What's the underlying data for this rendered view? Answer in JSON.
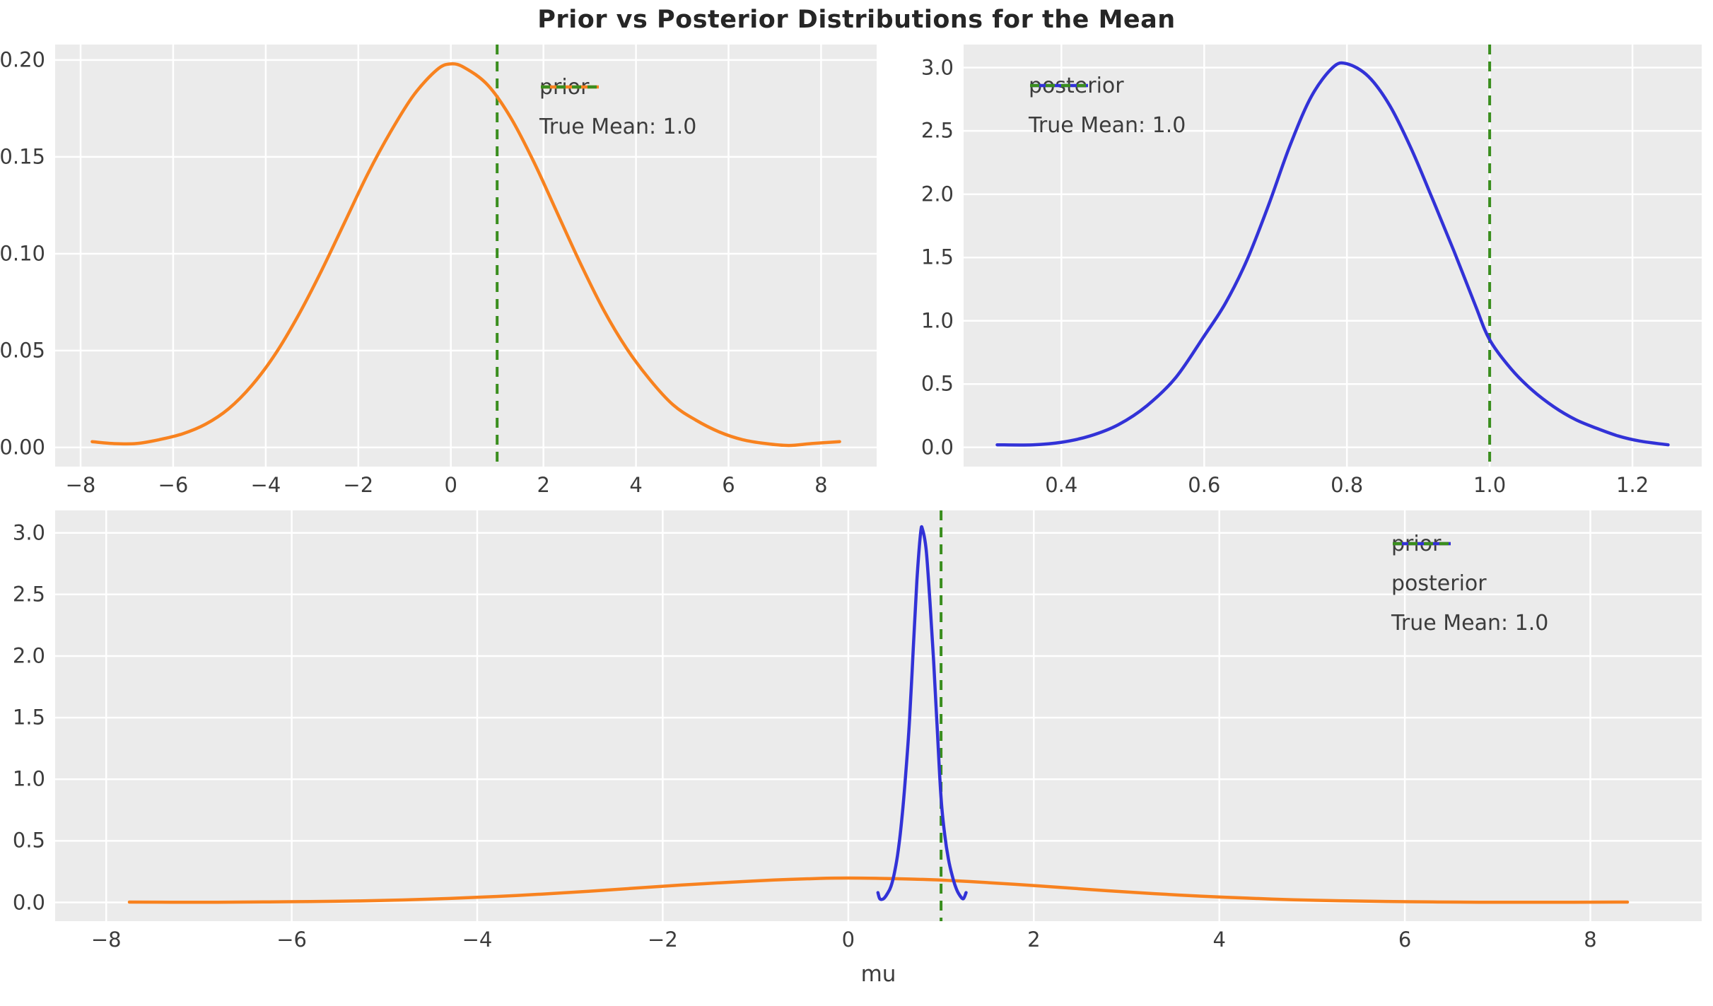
{
  "figure": {
    "title": "Prior vs Posterior Distributions for the Mean",
    "background": "#ffffff",
    "panel_background": "#ebebeb",
    "grid_color": "#ffffff",
    "tick_color": "#3c3c3c",
    "title_color": "#262626"
  },
  "colors": {
    "prior": "#f8821f",
    "posterior": "#3232d7",
    "true_mean": "#3a8e1e"
  },
  "chart_data": [
    {
      "id": "prior-subplot",
      "type": "line",
      "position": "top-left",
      "xlabel": "",
      "ylabel": "",
      "xlim": [
        -8.55,
        9.2
      ],
      "ylim": [
        -0.0099,
        0.208
      ],
      "grid": true,
      "legend_position": "upper right",
      "xticks": {
        "values": [
          -8,
          -6,
          -4,
          -2,
          0,
          2,
          4,
          6,
          8
        ],
        "labels": [
          "−8",
          "−6",
          "−4",
          "−2",
          "0",
          "2",
          "4",
          "6",
          "8"
        ]
      },
      "yticks": {
        "values": [
          0,
          0.05,
          0.1,
          0.15,
          0.2
        ],
        "labels": [
          "0.00",
          "0.05",
          "0.10",
          "0.15",
          "0.20"
        ]
      },
      "series": [
        {
          "name": "prior",
          "color_key": "prior",
          "dash": "solid",
          "points": [
            [
              -7.75,
              0.003
            ],
            [
              -7.3,
              0.002
            ],
            [
              -6.8,
              0.002
            ],
            [
              -6.3,
              0.004
            ],
            [
              -5.8,
              0.007
            ],
            [
              -5.3,
              0.012
            ],
            [
              -4.8,
              0.02
            ],
            [
              -4.3,
              0.032
            ],
            [
              -3.8,
              0.048
            ],
            [
              -3.3,
              0.068
            ],
            [
              -2.8,
              0.091
            ],
            [
              -2.3,
              0.116
            ],
            [
              -1.8,
              0.141
            ],
            [
              -1.3,
              0.163
            ],
            [
              -0.8,
              0.182
            ],
            [
              -0.3,
              0.195
            ],
            [
              0.0,
              0.198
            ],
            [
              0.3,
              0.196
            ],
            [
              0.8,
              0.187
            ],
            [
              1.3,
              0.17
            ],
            [
              1.8,
              0.147
            ],
            [
              2.3,
              0.121
            ],
            [
              2.8,
              0.095
            ],
            [
              3.3,
              0.071
            ],
            [
              3.8,
              0.051
            ],
            [
              4.3,
              0.035
            ],
            [
              4.8,
              0.022
            ],
            [
              5.3,
              0.014
            ],
            [
              5.8,
              0.008
            ],
            [
              6.3,
              0.004
            ],
            [
              6.8,
              0.002
            ],
            [
              7.3,
              0.001
            ],
            [
              7.8,
              0.002
            ],
            [
              8.4,
              0.003
            ]
          ]
        }
      ],
      "vline": {
        "x": 1.0,
        "label": "True Mean: 1.0",
        "color_key": "true_mean",
        "dash": "dashed"
      },
      "legend": [
        {
          "label": "prior",
          "color_key": "prior",
          "dash": "solid"
        },
        {
          "label": "True Mean: 1.0",
          "color_key": "true_mean",
          "dash": "dashed"
        }
      ]
    },
    {
      "id": "posterior-subplot",
      "type": "line",
      "position": "top-right",
      "xlabel": "",
      "ylabel": "",
      "xlim": [
        0.263,
        1.297
      ],
      "ylim": [
        -0.152,
        3.182
      ],
      "grid": true,
      "legend_position": "upper left",
      "xticks": {
        "values": [
          0.4,
          0.6,
          0.8,
          1.0,
          1.2
        ],
        "labels": [
          "0.4",
          "0.6",
          "0.8",
          "1.0",
          "1.2"
        ]
      },
      "yticks": {
        "values": [
          0,
          0.5,
          1.0,
          1.5,
          2.0,
          2.5,
          3.0
        ],
        "labels": [
          "0.0",
          "0.5",
          "1.0",
          "1.5",
          "2.0",
          "2.5",
          "3.0"
        ]
      },
      "series": [
        {
          "name": "posterior",
          "color_key": "posterior",
          "dash": "solid",
          "points": [
            [
              0.31,
              0.02
            ],
            [
              0.36,
              0.02
            ],
            [
              0.4,
              0.04
            ],
            [
              0.44,
              0.09
            ],
            [
              0.48,
              0.18
            ],
            [
              0.52,
              0.33
            ],
            [
              0.56,
              0.55
            ],
            [
              0.6,
              0.88
            ],
            [
              0.63,
              1.14
            ],
            [
              0.66,
              1.48
            ],
            [
              0.69,
              1.91
            ],
            [
              0.72,
              2.38
            ],
            [
              0.75,
              2.77
            ],
            [
              0.78,
              3.0
            ],
            [
              0.8,
              3.03
            ],
            [
              0.83,
              2.93
            ],
            [
              0.86,
              2.7
            ],
            [
              0.89,
              2.36
            ],
            [
              0.92,
              1.96
            ],
            [
              0.95,
              1.55
            ],
            [
              0.98,
              1.12
            ],
            [
              1.0,
              0.85
            ],
            [
              1.03,
              0.62
            ],
            [
              1.06,
              0.45
            ],
            [
              1.09,
              0.32
            ],
            [
              1.12,
              0.22
            ],
            [
              1.15,
              0.15
            ],
            [
              1.18,
              0.09
            ],
            [
              1.21,
              0.05
            ],
            [
              1.25,
              0.02
            ]
          ]
        }
      ],
      "vline": {
        "x": 1.0,
        "label": "True Mean: 1.0",
        "color_key": "true_mean",
        "dash": "dashed"
      },
      "legend": [
        {
          "label": "posterior",
          "color_key": "posterior",
          "dash": "solid"
        },
        {
          "label": "True Mean: 1.0",
          "color_key": "true_mean",
          "dash": "dashed"
        }
      ]
    },
    {
      "id": "combined-subplot",
      "type": "line",
      "position": "bottom",
      "xlabel": "mu",
      "ylabel": "",
      "xlim": [
        -8.55,
        9.2
      ],
      "ylim": [
        -0.152,
        3.182
      ],
      "grid": true,
      "legend_position": "upper right",
      "xticks": {
        "values": [
          -8,
          -6,
          -4,
          -2,
          0,
          2,
          4,
          6,
          8
        ],
        "labels": [
          "−8",
          "−6",
          "−4",
          "−2",
          "0",
          "2",
          "4",
          "6",
          "8"
        ]
      },
      "yticks": {
        "values": [
          0,
          0.5,
          1.0,
          1.5,
          2.0,
          2.5,
          3.0
        ],
        "labels": [
          "0.0",
          "0.5",
          "1.0",
          "1.5",
          "2.0",
          "2.5",
          "3.0"
        ]
      },
      "series": [
        {
          "name": "prior",
          "color_key": "prior",
          "dash": "solid",
          "points": [
            [
              -7.75,
              0.003
            ],
            [
              -7.3,
              0.002
            ],
            [
              -6.8,
              0.002
            ],
            [
              -6.3,
              0.004
            ],
            [
              -5.8,
              0.007
            ],
            [
              -5.3,
              0.012
            ],
            [
              -4.8,
              0.02
            ],
            [
              -4.3,
              0.032
            ],
            [
              -3.8,
              0.048
            ],
            [
              -3.3,
              0.068
            ],
            [
              -2.8,
              0.091
            ],
            [
              -2.3,
              0.116
            ],
            [
              -1.8,
              0.141
            ],
            [
              -1.3,
              0.163
            ],
            [
              -0.8,
              0.182
            ],
            [
              -0.3,
              0.195
            ],
            [
              0.0,
              0.198
            ],
            [
              0.3,
              0.196
            ],
            [
              0.8,
              0.187
            ],
            [
              1.3,
              0.17
            ],
            [
              1.8,
              0.147
            ],
            [
              2.3,
              0.121
            ],
            [
              2.8,
              0.095
            ],
            [
              3.3,
              0.071
            ],
            [
              3.8,
              0.051
            ],
            [
              4.3,
              0.035
            ],
            [
              4.8,
              0.022
            ],
            [
              5.3,
              0.014
            ],
            [
              5.8,
              0.008
            ],
            [
              6.3,
              0.004
            ],
            [
              6.8,
              0.002
            ],
            [
              7.3,
              0.001
            ],
            [
              7.8,
              0.002
            ],
            [
              8.4,
              0.003
            ]
          ]
        },
        {
          "name": "posterior",
          "color_key": "posterior",
          "dash": "solid",
          "points": [
            [
              0.32,
              0.08
            ],
            [
              0.34,
              0.03
            ],
            [
              0.38,
              0.03
            ],
            [
              0.42,
              0.07
            ],
            [
              0.46,
              0.13
            ],
            [
              0.5,
              0.25
            ],
            [
              0.54,
              0.43
            ],
            [
              0.58,
              0.7
            ],
            [
              0.62,
              1.05
            ],
            [
              0.66,
              1.48
            ],
            [
              0.7,
              2.05
            ],
            [
              0.74,
              2.62
            ],
            [
              0.78,
              3.0
            ],
            [
              0.8,
              3.03
            ],
            [
              0.84,
              2.86
            ],
            [
              0.88,
              2.45
            ],
            [
              0.92,
              1.96
            ],
            [
              0.96,
              1.4
            ],
            [
              1.0,
              0.85
            ],
            [
              1.04,
              0.55
            ],
            [
              1.08,
              0.35
            ],
            [
              1.12,
              0.22
            ],
            [
              1.16,
              0.12
            ],
            [
              1.2,
              0.06
            ],
            [
              1.24,
              0.03
            ],
            [
              1.27,
              0.08
            ]
          ]
        }
      ],
      "vline": {
        "x": 1.0,
        "label": "True Mean: 1.0",
        "color_key": "true_mean",
        "dash": "dashed"
      },
      "legend": [
        {
          "label": "prior",
          "color_key": "prior",
          "dash": "solid"
        },
        {
          "label": "posterior",
          "color_key": "posterior",
          "dash": "solid"
        },
        {
          "label": "True Mean: 1.0",
          "color_key": "true_mean",
          "dash": "dashed"
        }
      ]
    }
  ]
}
